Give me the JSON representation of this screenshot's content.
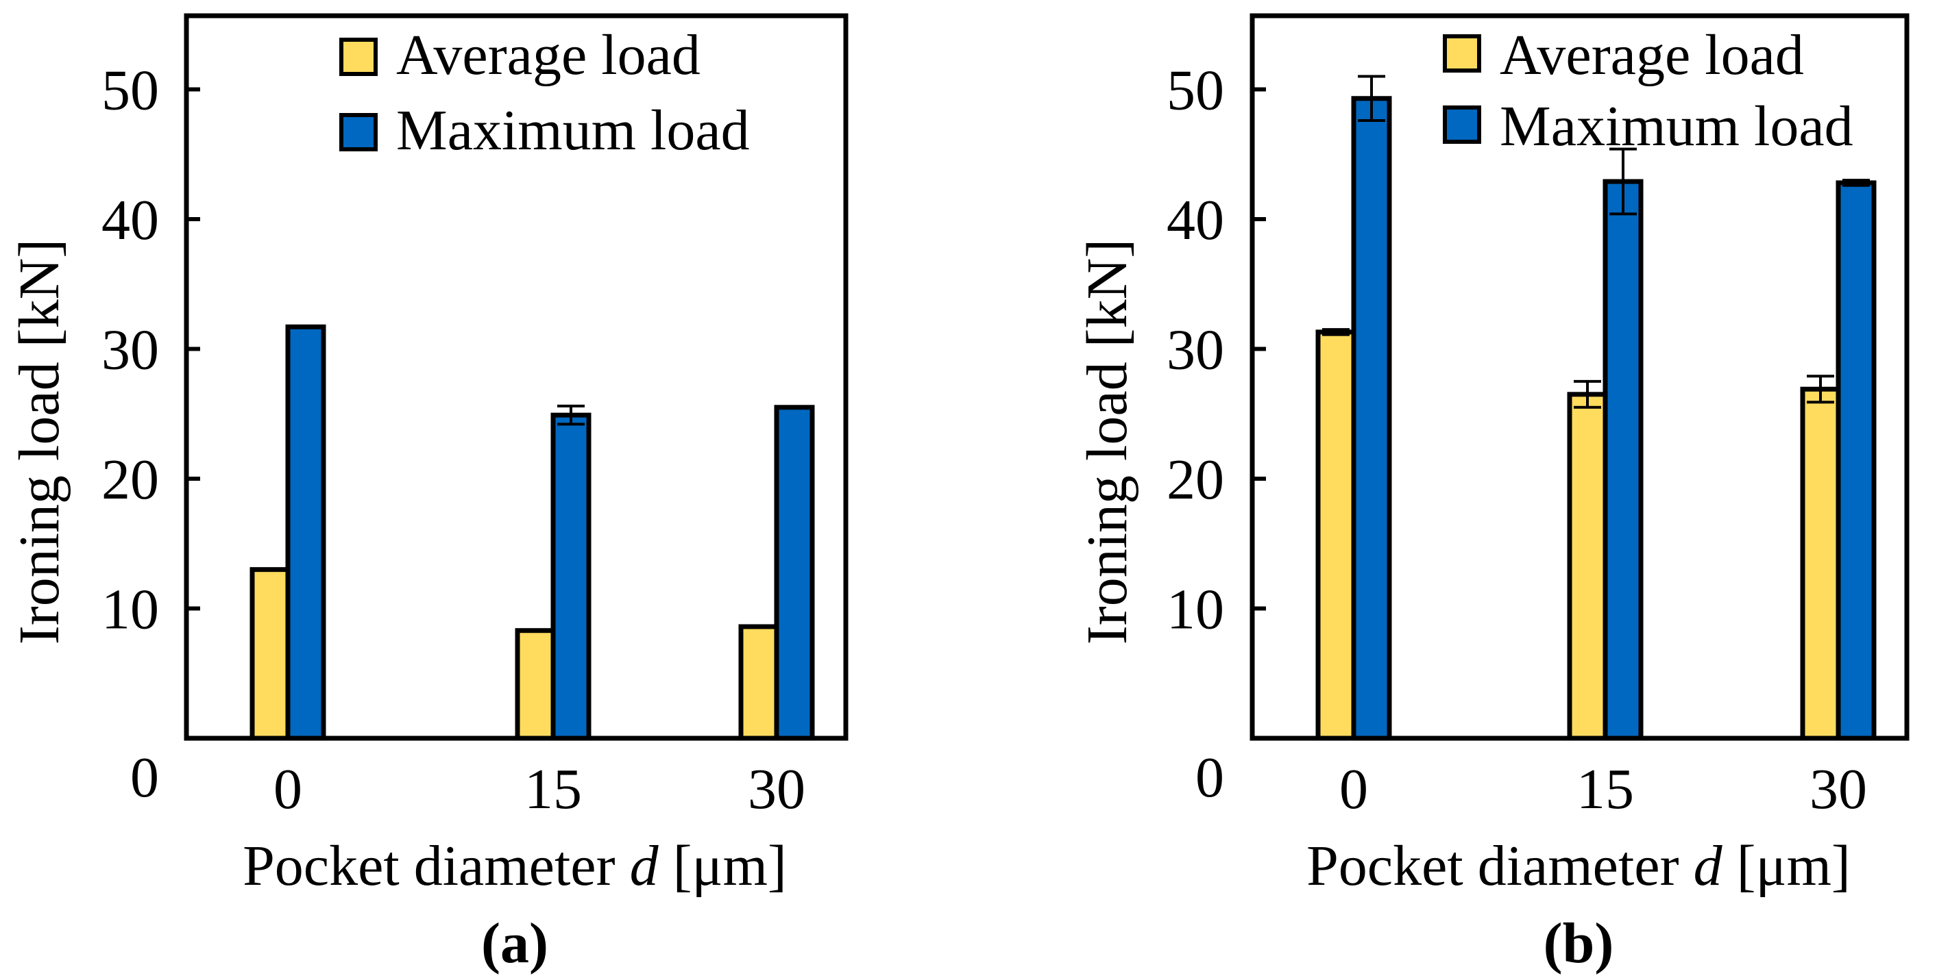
{
  "colors": {
    "average": "#FFDC5E",
    "maximum": "#0068C0"
  },
  "chart_data": [
    {
      "type": "bar",
      "panel_label": "a",
      "title": "",
      "xlabel_prefix": "Pocket diameter ",
      "xlabel_var": "d",
      "xlabel_unit": " [μm]",
      "ylabel": "Ironing load [kN]",
      "categories": [
        "0",
        "15",
        "30"
      ],
      "ylim": [
        0,
        55
      ],
      "yticks": [
        0,
        10,
        20,
        30,
        40,
        50
      ],
      "legend": "top-right",
      "series": [
        {
          "name": "Average load",
          "color_key": "average",
          "values": [
            13.0,
            8.3,
            8.6
          ],
          "errors": [
            0,
            0,
            0
          ]
        },
        {
          "name": "Maximum load",
          "color_key": "maximum",
          "values": [
            31.7,
            24.9,
            25.5
          ],
          "errors": [
            0,
            0.7,
            0
          ]
        }
      ]
    },
    {
      "type": "bar",
      "panel_label": "b",
      "title": "",
      "xlabel_prefix": "Pocket diameter ",
      "xlabel_var": "d",
      "xlabel_unit": " [μm]",
      "ylabel": "Ironing load [kN]",
      "categories": [
        "0",
        "15",
        "30"
      ],
      "ylim": [
        0,
        55
      ],
      "yticks": [
        0,
        10,
        20,
        30,
        40,
        50
      ],
      "legend": "top-right",
      "series": [
        {
          "name": "Average load",
          "color_key": "average",
          "values": [
            31.3,
            26.5,
            26.9
          ],
          "errors": [
            0.2,
            1.0,
            1.0
          ]
        },
        {
          "name": "Maximum load",
          "color_key": "maximum",
          "values": [
            49.3,
            42.9,
            42.8
          ],
          "errors": [
            1.7,
            2.5,
            0.2
          ]
        }
      ]
    }
  ]
}
